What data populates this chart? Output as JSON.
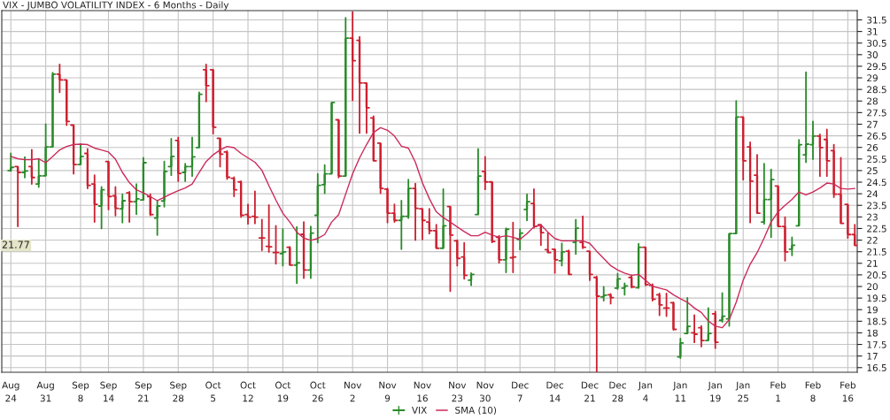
{
  "chart_data": {
    "type": "candlestick",
    "title": "VIX - JUMBO VOLATILITY INDEX - 6 Months - Daily",
    "categories": [
      "Aug\n24",
      null,
      null,
      null,
      null,
      "Aug\n31",
      null,
      null,
      null,
      null,
      "Sep\n8",
      null,
      null,
      null,
      "Sep\n14",
      null,
      null,
      null,
      null,
      "Sep\n21",
      null,
      null,
      null,
      null,
      "Sep\n28",
      null,
      null,
      null,
      null,
      "Oct\n5",
      null,
      null,
      null,
      null,
      "Oct\n12",
      null,
      null,
      null,
      null,
      "Oct\n19",
      null,
      null,
      null,
      null,
      "Oct\n26",
      null,
      null,
      null,
      null,
      "Nov\n2",
      null,
      null,
      null,
      null,
      "Nov\n9",
      null,
      null,
      null,
      null,
      "Nov\n16",
      null,
      null,
      null,
      null,
      "Nov\n23",
      null,
      null,
      null,
      "Nov\n30",
      null,
      null,
      null,
      null,
      "Dec\n7",
      null,
      null,
      null,
      null,
      "Dec\n14",
      null,
      null,
      null,
      null,
      "Dec\n21",
      null,
      null,
      null,
      "Dec\n28",
      null,
      null,
      null,
      "Jan\n4",
      null,
      null,
      null,
      null,
      "Jan\n11",
      null,
      null,
      null,
      null,
      "Jan\n19",
      null,
      null,
      null,
      "Jan\n25",
      null,
      null,
      null,
      null,
      "Feb\n1",
      null,
      null,
      null,
      null,
      "Feb\n8",
      null,
      null,
      null,
      null,
      "Feb\n16",
      null
    ],
    "ylim": [
      16.3,
      31.9
    ],
    "yticks": [
      16.5,
      17,
      17.5,
      18,
      18.5,
      19,
      19.5,
      20,
      20.5,
      21,
      21.5,
      22,
      22.5,
      23,
      23.5,
      24,
      24.5,
      25,
      25.5,
      26,
      26.5,
      27,
      27.5,
      28,
      28.5,
      29,
      29.5,
      30,
      30.5,
      31,
      31.5
    ],
    "grid": true,
    "legend": "bottom",
    "annotations": [
      {
        "text": "21.77",
        "y": 21.77
      }
    ],
    "series": [
      {
        "name": "VIX",
        "type": "candlestick",
        "color": "#2a8a2a",
        "ohlc": [
          [
            25.0,
            25.74,
            24.98,
            25.14
          ],
          [
            25.17,
            25.17,
            22.59,
            24.92
          ],
          [
            24.92,
            25.58,
            24.7,
            24.98
          ],
          [
            25.17,
            25.9,
            24.42,
            24.7
          ],
          [
            24.42,
            25.49,
            24.29,
            24.77
          ],
          [
            24.77,
            27.0,
            24.77,
            26.02
          ],
          [
            26.02,
            29.22,
            26.02,
            29.16
          ],
          [
            29.16,
            29.58,
            28.38,
            28.91
          ],
          [
            28.91,
            28.91,
            26.96,
            27.12
          ],
          [
            26.96,
            26.96,
            24.86,
            25.26
          ],
          [
            25.26,
            26.14,
            25.26,
            25.61
          ],
          [
            25.74,
            25.93,
            24.23,
            24.36
          ],
          [
            24.42,
            24.8,
            22.78,
            23.54
          ],
          [
            23.47,
            24.29,
            22.5,
            24.17
          ],
          [
            25.39,
            25.39,
            23.32,
            23.88
          ],
          [
            23.91,
            24.29,
            23.06,
            23.37
          ],
          [
            23.35,
            23.98,
            22.76,
            23.7
          ],
          [
            24.04,
            24.08,
            22.78,
            23.66
          ],
          [
            23.66,
            24.42,
            23.12,
            23.78
          ],
          [
            23.73,
            25.55,
            23.73,
            25.34
          ],
          [
            23.88,
            23.98,
            23.07,
            23.1
          ],
          [
            22.95,
            23.7,
            22.22,
            23.47
          ],
          [
            23.69,
            25.39,
            23.44,
            24.96
          ],
          [
            25.17,
            26.37,
            24.8,
            25.61
          ],
          [
            26.3,
            26.43,
            24.54,
            24.88
          ],
          [
            24.92,
            25.3,
            24.54,
            25.17
          ],
          [
            25.17,
            26.43,
            24.76,
            25.59
          ],
          [
            25.99,
            28.38,
            25.99,
            28.29
          ],
          [
            29.35,
            29.58,
            27.98,
            28.66
          ],
          [
            29.35,
            29.35,
            26.59,
            26.87
          ],
          [
            26.39,
            26.39,
            25.17,
            25.71
          ],
          [
            25.8,
            25.84,
            24.63,
            24.71
          ],
          [
            24.67,
            24.71,
            23.89,
            24.17
          ],
          [
            24.51,
            24.54,
            22.99,
            23.07
          ],
          [
            23.1,
            23.54,
            22.7,
            22.99
          ],
          [
            23.03,
            24.1,
            22.72,
            22.99
          ],
          [
            22.09,
            22.88,
            21.56,
            22.09
          ],
          [
            21.73,
            23.51,
            21.49,
            21.71
          ],
          [
            21.46,
            22.62,
            20.98,
            21.46
          ],
          [
            21.42,
            22.47,
            20.9,
            21.49
          ],
          [
            21.69,
            21.71,
            20.92,
            20.92
          ],
          [
            20.92,
            22.57,
            20.14,
            21.02
          ],
          [
            22.25,
            22.78,
            20.36,
            20.71
          ],
          [
            20.71,
            22.59,
            20.36,
            22.3
          ],
          [
            23.07,
            24.86,
            21.9,
            24.36
          ],
          [
            24.39,
            25.24,
            24.02,
            24.86
          ],
          [
            24.86,
            27.94,
            24.86,
            27.94
          ],
          [
            27.19,
            27.19,
            24.7,
            24.76
          ],
          [
            24.76,
            31.59,
            24.76,
            30.71
          ],
          [
            30.71,
            31.84,
            28.03,
            29.74
          ],
          [
            30.62,
            30.77,
            26.62,
            28.78
          ],
          [
            28.78,
            28.78,
            26.62,
            27.71
          ],
          [
            27.27,
            27.35,
            25.42,
            25.42
          ],
          [
            26.18,
            26.18,
            24.02,
            24.23
          ],
          [
            24.2,
            24.23,
            22.76,
            23.16
          ],
          [
            23.16,
            23.54,
            22.78,
            22.85
          ],
          [
            22.85,
            23.7,
            21.61,
            23.03
          ],
          [
            23.03,
            24.61,
            22.95,
            24.23
          ],
          [
            24.23,
            24.44,
            22.0,
            23.37
          ],
          [
            23.35,
            23.35,
            22.03,
            22.85
          ],
          [
            22.78,
            23.35,
            22.28,
            22.41
          ],
          [
            22.41,
            22.66,
            21.65,
            21.65
          ],
          [
            21.65,
            24.2,
            21.65,
            22.62
          ],
          [
            23.45,
            23.45,
            19.8,
            22.22
          ],
          [
            21.97,
            22.0,
            20.9,
            21.21
          ],
          [
            21.27,
            21.88,
            20.33,
            20.48
          ],
          [
            20.27,
            20.58,
            20.05,
            20.52
          ],
          [
            23.1,
            25.93,
            23.1,
            24.76
          ],
          [
            24.96,
            25.59,
            24.19,
            24.51
          ],
          [
            24.51,
            24.51,
            21.9,
            21.94
          ],
          [
            22.12,
            22.19,
            21.02,
            21.15
          ],
          [
            21.15,
            22.51,
            20.61,
            22.47
          ],
          [
            21.24,
            22.76,
            20.61,
            21.27
          ],
          [
            22.03,
            22.47,
            21.59,
            22.3
          ],
          [
            23.32,
            23.98,
            22.85,
            23.66
          ],
          [
            23.58,
            24.2,
            22.53,
            22.59
          ],
          [
            22.66,
            22.66,
            21.78,
            22.32
          ],
          [
            21.59,
            22.32,
            21.46,
            21.46
          ],
          [
            21.61,
            21.61,
            20.58,
            21.15
          ],
          [
            21.11,
            21.86,
            20.9,
            21.49
          ],
          [
            21.52,
            21.56,
            20.52,
            20.52
          ],
          [
            21.9,
            22.88,
            21.4,
            22.51
          ],
          [
            21.9,
            23.03,
            21.65,
            21.69
          ],
          [
            21.52,
            21.52,
            20.27,
            20.52
          ],
          [
            20.39,
            20.43,
            16.3,
            19.58
          ],
          [
            19.55,
            19.98,
            19.39,
            19.62
          ],
          [
            19.64,
            19.68,
            19.26,
            19.52
          ],
          [
            19.93,
            20.56,
            19.89,
            20.33
          ],
          [
            19.93,
            20.14,
            19.64,
            20.02
          ],
          [
            20.39,
            20.48,
            19.95,
            19.98
          ],
          [
            19.95,
            21.84,
            19.93,
            21.69
          ],
          [
            21.69,
            21.69,
            20.05,
            20.08
          ],
          [
            20.05,
            20.1,
            19.39,
            19.45
          ],
          [
            19.64,
            19.7,
            18.76,
            19.2
          ],
          [
            19.07,
            19.7,
            18.72,
            19.07
          ],
          [
            19.3,
            19.32,
            18.13,
            18.15
          ],
          [
            16.96,
            17.75,
            16.91,
            17.56
          ],
          [
            17.97,
            19.51,
            17.97,
            18.28
          ],
          [
            18.0,
            18.76,
            17.59,
            17.94
          ],
          [
            18.22,
            18.3,
            17.41,
            17.67
          ],
          [
            17.67,
            19.07,
            17.67,
            17.97
          ],
          [
            18.82,
            18.92,
            17.34,
            17.59
          ],
          [
            18.54,
            19.72,
            18.47,
            18.72
          ],
          [
            18.6,
            22.28,
            18.3,
            22.28
          ],
          [
            22.28,
            28.0,
            22.28,
            27.31
          ],
          [
            27.31,
            27.31,
            24.61,
            25.42
          ],
          [
            26.02,
            26.22,
            22.76,
            24.54
          ],
          [
            24.8,
            25.68,
            23.16,
            23.16
          ],
          [
            22.78,
            25.3,
            22.7,
            23.75
          ],
          [
            23.75,
            25.05,
            22.13,
            24.61
          ],
          [
            24.33,
            24.33,
            22.59,
            22.59
          ],
          [
            22.59,
            22.99,
            21.11,
            21.49
          ],
          [
            21.61,
            22.12,
            21.34,
            21.78
          ],
          [
            22.62,
            26.33,
            22.62,
            26.12
          ],
          [
            25.68,
            29.24,
            25.36,
            26.14
          ],
          [
            26.12,
            27.12,
            25.49,
            26.49
          ],
          [
            26.49,
            26.56,
            24.76,
            25.99
          ],
          [
            26.34,
            26.77,
            24.76,
            25.42
          ],
          [
            25.86,
            26.12,
            23.85,
            23.98
          ],
          [
            23.98,
            25.55,
            22.72,
            22.72
          ],
          [
            23.54,
            23.54,
            22.09,
            22.24
          ],
          [
            22.24,
            22.66,
            21.77,
            21.77
          ]
        ],
        "colors": [
          "#2a8a2a",
          "#cc1f2f",
          "#2a8a2a",
          "#cc1f2f",
          "#2a8a2a",
          "#2a8a2a",
          "#2a8a2a",
          "#cc1f2f",
          "#cc1f2f",
          "#cc1f2f",
          "#2a8a2a",
          "#cc1f2f",
          "#cc1f2f",
          "#2a8a2a",
          "#cc1f2f",
          "#cc1f2f",
          "#2a8a2a",
          "#cc1f2f",
          "#2a8a2a",
          "#2a8a2a",
          "#cc1f2f",
          "#2a8a2a",
          "#2a8a2a",
          "#2a8a2a",
          "#cc1f2f",
          "#2a8a2a",
          "#2a8a2a",
          "#2a8a2a",
          "#cc1f2f",
          "#cc1f2f",
          "#cc1f2f",
          "#cc1f2f",
          "#cc1f2f",
          "#cc1f2f",
          "#cc1f2f",
          "#cc1f2f",
          "#cc1f2f",
          "#cc1f2f",
          "#cc1f2f",
          "#2a8a2a",
          "#cc1f2f",
          "#2a8a2a",
          "#cc1f2f",
          "#2a8a2a",
          "#2a8a2a",
          "#2a8a2a",
          "#2a8a2a",
          "#cc1f2f",
          "#2a8a2a",
          "#cc1f2f",
          "#cc1f2f",
          "#cc1f2f",
          "#cc1f2f",
          "#cc1f2f",
          "#cc1f2f",
          "#cc1f2f",
          "#2a8a2a",
          "#2a8a2a",
          "#cc1f2f",
          "#cc1f2f",
          "#cc1f2f",
          "#cc1f2f",
          "#2a8a2a",
          "#cc1f2f",
          "#cc1f2f",
          "#cc1f2f",
          "#2a8a2a",
          "#2a8a2a",
          "#cc1f2f",
          "#cc1f2f",
          "#cc1f2f",
          "#2a8a2a",
          "#cc1f2f",
          "#2a8a2a",
          "#2a8a2a",
          "#cc1f2f",
          "#cc1f2f",
          "#cc1f2f",
          "#cc1f2f",
          "#2a8a2a",
          "#cc1f2f",
          "#2a8a2a",
          "#cc1f2f",
          "#cc1f2f",
          "#cc1f2f",
          "#2a8a2a",
          "#cc1f2f",
          "#2a8a2a",
          "#2a8a2a",
          "#cc1f2f",
          "#2a8a2a",
          "#cc1f2f",
          "#cc1f2f",
          "#cc1f2f",
          "#cc1f2f",
          "#cc1f2f",
          "#2a8a2a",
          "#2a8a2a",
          "#cc1f2f",
          "#cc1f2f",
          "#2a8a2a",
          "#cc1f2f",
          "#2a8a2a",
          "#2a8a2a",
          "#2a8a2a",
          "#cc1f2f",
          "#cc1f2f",
          "#cc1f2f",
          "#2a8a2a",
          "#2a8a2a",
          "#cc1f2f",
          "#cc1f2f",
          "#2a8a2a",
          "#2a8a2a",
          "#2a8a2a",
          "#2a8a2a",
          "#cc1f2f",
          "#cc1f2f",
          "#cc1f2f",
          "#cc1f2f",
          "#cc1f2f",
          "#cc1f2f"
        ]
      },
      {
        "name": "SMA (10)",
        "type": "line",
        "color": "#cc2a5a",
        "values": [
          25.61,
          25.51,
          25.47,
          25.47,
          25.51,
          25.34,
          25.61,
          25.89,
          26.04,
          26.12,
          26.14,
          26.12,
          25.97,
          25.89,
          25.8,
          25.49,
          24.92,
          24.48,
          24.17,
          24.04,
          23.88,
          23.7,
          23.85,
          24.0,
          24.13,
          24.25,
          24.42,
          24.92,
          25.39,
          25.68,
          25.89,
          26.04,
          25.99,
          25.74,
          25.55,
          25.36,
          25.01,
          24.35,
          23.73,
          23.16,
          22.78,
          22.34,
          22.09,
          21.99,
          22.07,
          22.24,
          22.78,
          23.1,
          23.98,
          24.86,
          25.55,
          26.12,
          26.64,
          26.85,
          26.74,
          26.49,
          26.05,
          25.97,
          25.36,
          24.48,
          23.79,
          23.22,
          22.97,
          22.78,
          22.57,
          22.37,
          22.19,
          22.19,
          22.34,
          22.22,
          22.12,
          22.19,
          22.12,
          22.03,
          22.28,
          22.57,
          22.66,
          22.34,
          22.07,
          21.97,
          21.97,
          21.97,
          21.97,
          21.86,
          21.52,
          21.21,
          20.9,
          20.71,
          20.58,
          20.48,
          20.52,
          20.27,
          20.01,
          19.93,
          19.85,
          19.64,
          19.47,
          19.32,
          19.07,
          18.88,
          18.51,
          18.29,
          18.22,
          18.57,
          19.32,
          20.27,
          20.96,
          21.46,
          22.09,
          22.78,
          23.22,
          23.5,
          23.76,
          24.08,
          23.95,
          24.08,
          24.25,
          24.46,
          24.42,
          24.23,
          24.2,
          24.23
        ]
      }
    ]
  }
}
